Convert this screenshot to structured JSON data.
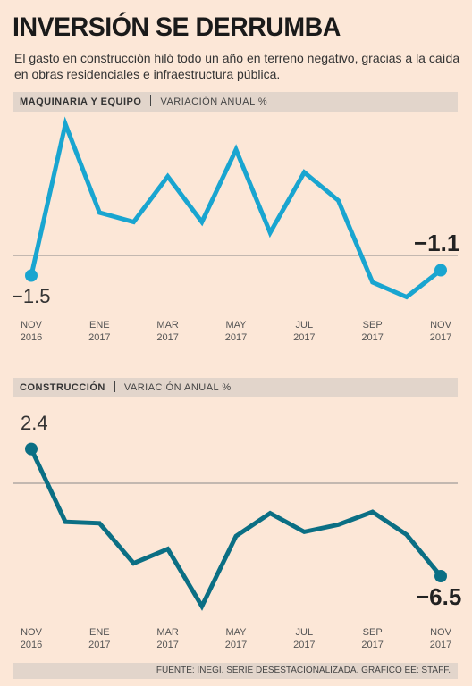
{
  "header": {
    "title": "INVERSIÓN SE DERRUMBA",
    "subtitle": "El gasto en construcción hiló todo un año en terreno negativo, gracias a la caída en obras residenciales e infraestructura pública."
  },
  "source": "FUENTE: INEGI. SERIE DESESTACIONALIZADA. GRÁFICO EE: STAFF.",
  "chart_data": [
    {
      "type": "line",
      "title": "MAQUINARIA Y EQUIPO",
      "ylabel": "VARIACIÓN ANUAL %",
      "categories": [
        "NOV\n2016",
        null,
        "ENE\n2017",
        null,
        "MAR\n2017",
        null,
        "MAY\n2017",
        null,
        "JUL\n2017",
        null,
        "SEP\n2017",
        null,
        "NOV\n2017"
      ],
      "values": [
        -1.5,
        9.8,
        3.2,
        2.5,
        5.9,
        2.5,
        7.9,
        1.7,
        6.2,
        4.1,
        -2.0,
        -3.1,
        -1.1
      ],
      "value_labels": [
        "−1.5",
        null,
        null,
        null,
        null,
        null,
        null,
        null,
        null,
        null,
        null,
        null,
        "−1.1"
      ],
      "color": "#19a5d0",
      "ylim": [
        -4,
        11
      ]
    },
    {
      "type": "line",
      "title": "CONSTRUCCIÓN",
      "ylabel": "VARIACIÓN ANUAL %",
      "categories": [
        "NOV\n2016",
        null,
        "ENE\n2017",
        null,
        "MAR\n2017",
        null,
        "MAY\n2017",
        null,
        "JUL\n2017",
        null,
        "SEP\n2017",
        null,
        "NOV\n2017"
      ],
      "values": [
        2.4,
        -2.7,
        -2.8,
        -5.6,
        -4.6,
        -8.6,
        -3.7,
        -2.1,
        -3.4,
        -2.9,
        -2.0,
        -3.6,
        -6.5
      ],
      "value_labels": [
        "2.4",
        null,
        null,
        null,
        null,
        null,
        null,
        null,
        null,
        null,
        null,
        null,
        "−6.5"
      ],
      "color": "#0b6f84",
      "ylim": [
        -10,
        4
      ]
    }
  ]
}
